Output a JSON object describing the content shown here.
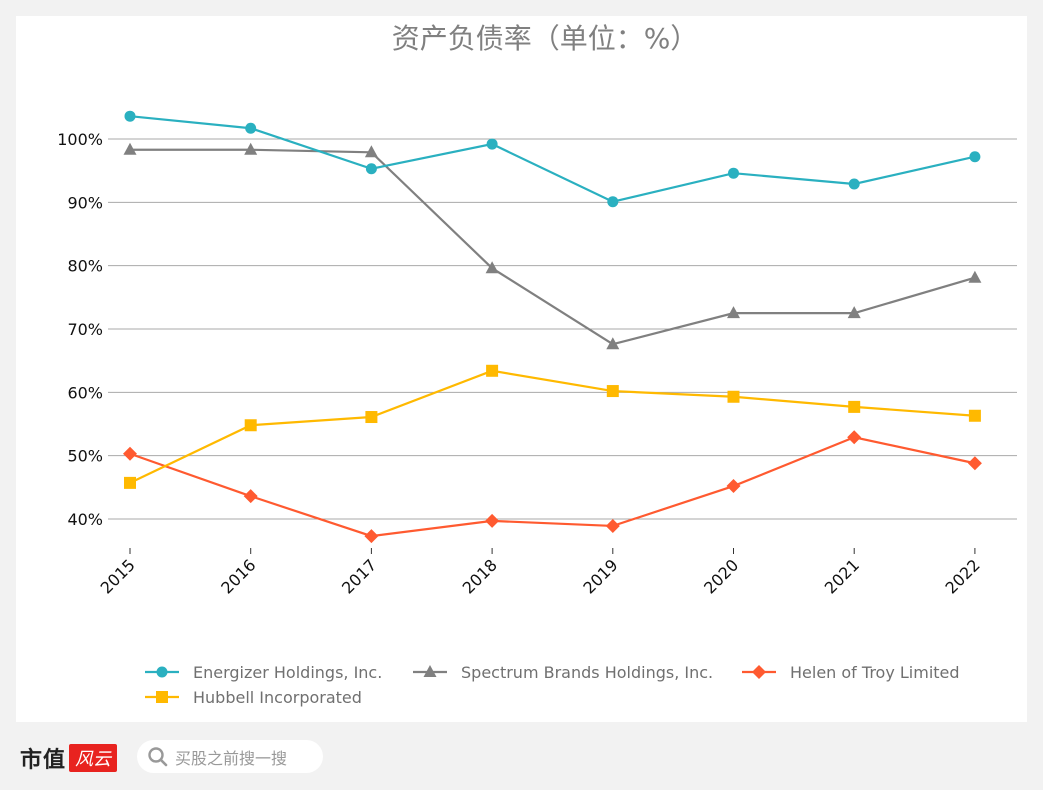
{
  "chart_data": {
    "type": "line",
    "title": "资产负债率（单位：%）",
    "x": [
      "2015",
      "2016",
      "2017",
      "2018",
      "2019",
      "2020",
      "2021",
      "2022"
    ],
    "ylim": [
      35,
      105
    ],
    "yticks": [
      40,
      50,
      60,
      70,
      80,
      90,
      100
    ],
    "ytick_labels": [
      "40%",
      "50%",
      "60%",
      "70%",
      "80%",
      "90%",
      "100%"
    ],
    "grid": "horizontal",
    "legend_placement": "bottom",
    "series": [
      {
        "name": "Energizer Holdings, Inc.",
        "color": "#2ab0c0",
        "marker": "circle",
        "values": [
          103.6,
          101.7,
          95.3,
          99.2,
          90.1,
          94.6,
          92.9,
          97.2
        ]
      },
      {
        "name": "Spectrum Brands Holdings, Inc.",
        "color": "#808080",
        "marker": "triangle",
        "values": [
          98.3,
          98.3,
          97.9,
          79.6,
          67.6,
          72.5,
          72.5,
          78.1
        ]
      },
      {
        "name": "Helen of Troy Limited",
        "color": "#ff5a30",
        "marker": "diamond",
        "values": [
          50.3,
          43.6,
          37.3,
          39.7,
          38.9,
          45.2,
          52.9,
          48.8
        ]
      },
      {
        "name": "Hubbell Incorporated",
        "color": "#ffb900",
        "marker": "square",
        "values": [
          45.7,
          54.8,
          56.1,
          63.4,
          60.2,
          59.3,
          57.7,
          56.3
        ]
      }
    ]
  },
  "footer": {
    "logo_text": "市值",
    "logo_red_text": "风云",
    "search_placeholder": "买股之前搜一搜",
    "search_icon": "search-icon"
  }
}
